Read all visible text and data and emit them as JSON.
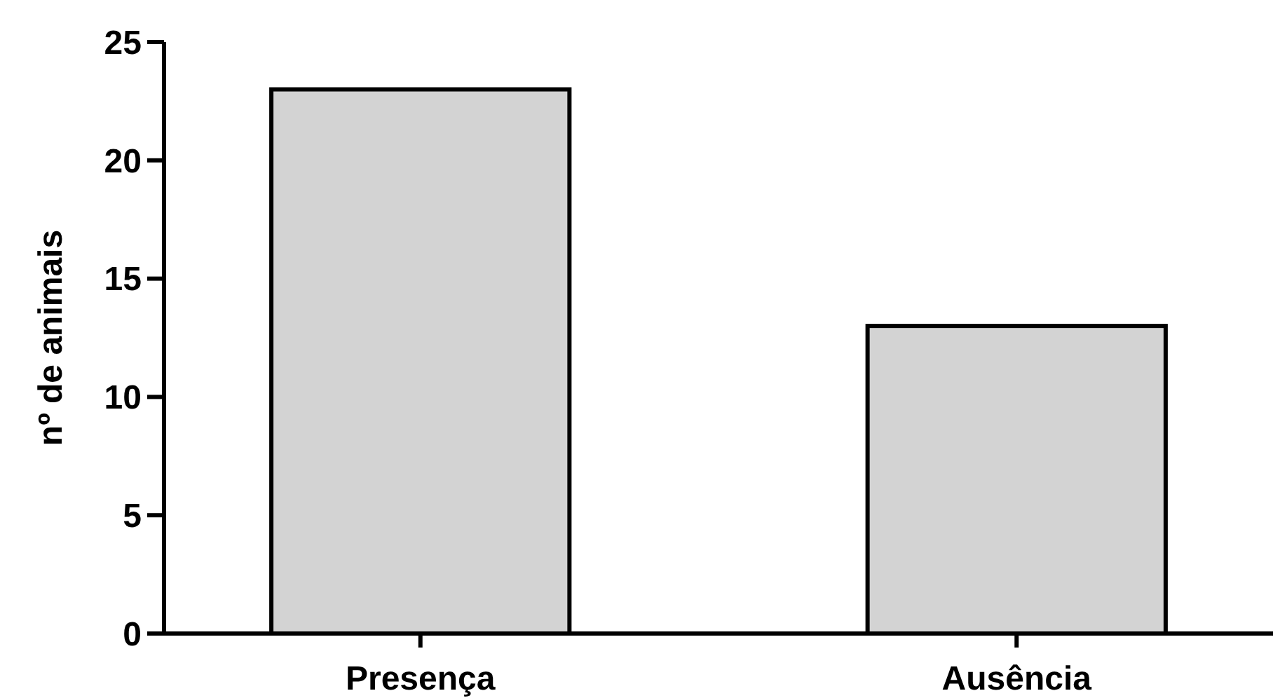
{
  "chart_data": {
    "type": "bar",
    "ylabel": "nº de animais",
    "categories": [
      "Presença",
      "Ausência"
    ],
    "values": [
      23,
      13
    ],
    "color": "#d3d3d3",
    "ylim": [
      0,
      25
    ],
    "yticks": [
      0,
      5,
      10,
      15,
      20,
      25
    ],
    "grid": false
  }
}
